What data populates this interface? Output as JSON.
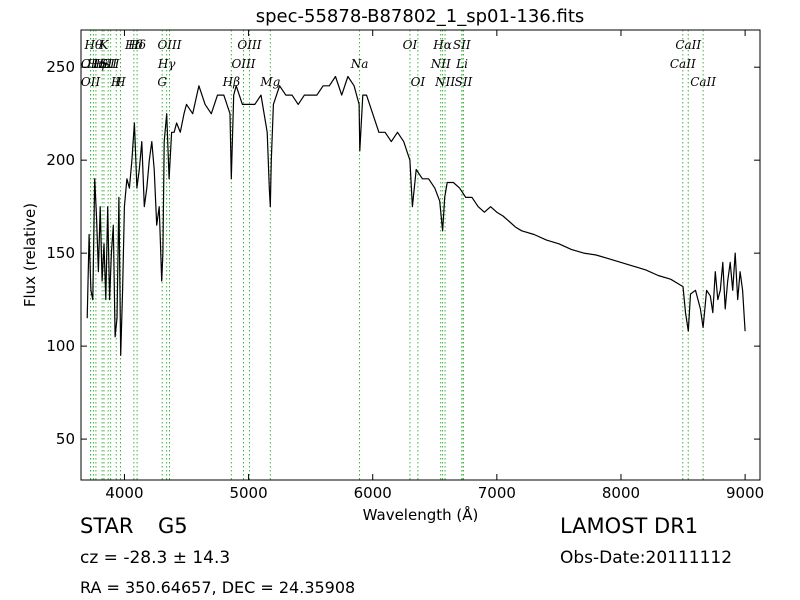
{
  "chart_data": {
    "type": "line",
    "title": "spec-55878-B87802_1_sp01-136.fits",
    "xlabel": "Wavelength (Å)",
    "ylabel": "Flux (relative)",
    "xlim": [
      3650,
      9120
    ],
    "ylim": [
      28,
      270
    ],
    "xticks": [
      4000,
      5000,
      6000,
      7000,
      8000,
      9000
    ],
    "yticks": [
      50,
      100,
      150,
      200,
      250
    ],
    "grid": false,
    "series": [
      {
        "x": [
          3700,
          3715,
          3730,
          3745,
          3760,
          3775,
          3790,
          3805,
          3820,
          3835,
          3850,
          3865,
          3880,
          3895,
          3910,
          3925,
          3940,
          3955,
          3970,
          3985,
          4000,
          4020,
          4040,
          4060,
          4080,
          4100,
          4120,
          4140,
          4160,
          4180,
          4200,
          4220,
          4240,
          4260,
          4280,
          4300,
          4310,
          4320,
          4340,
          4360,
          4380,
          4400,
          4420,
          4450,
          4480,
          4500,
          4550,
          4600,
          4650,
          4700,
          4750,
          4800,
          4850,
          4861,
          4880,
          4900,
          4950,
          5000,
          5050,
          5100,
          5150,
          5167,
          5175,
          5183,
          5200,
          5250,
          5300,
          5350,
          5400,
          5450,
          5500,
          5550,
          5600,
          5650,
          5700,
          5750,
          5800,
          5850,
          5870,
          5890,
          5896,
          5920,
          5950,
          6000,
          6050,
          6100,
          6150,
          6200,
          6250,
          6300,
          6320,
          6350,
          6400,
          6450,
          6500,
          6540,
          6563,
          6580,
          6600,
          6650,
          6700,
          6750,
          6800,
          6850,
          6900,
          6950,
          7000,
          7050,
          7100,
          7150,
          7200,
          7300,
          7400,
          7500,
          7600,
          7700,
          7800,
          7900,
          8000,
          8100,
          8200,
          8300,
          8400,
          8450,
          8500,
          8520,
          8542,
          8560,
          8600,
          8640,
          8662,
          8690,
          8720,
          8740,
          8760,
          8780,
          8800,
          8820,
          8840,
          8860,
          8880,
          8900,
          8920,
          8940,
          8960,
          8980,
          9000
        ],
        "y": [
          115,
          160,
          130,
          125,
          190,
          170,
          140,
          175,
          135,
          155,
          125,
          175,
          125,
          150,
          165,
          105,
          115,
          180,
          95,
          130,
          175,
          190,
          185,
          200,
          220,
          185,
          195,
          210,
          175,
          185,
          200,
          210,
          195,
          165,
          175,
          135,
          150,
          210,
          225,
          190,
          215,
          215,
          220,
          215,
          225,
          230,
          225,
          240,
          230,
          225,
          235,
          235,
          225,
          190,
          235,
          240,
          230,
          230,
          230,
          235,
          215,
          185,
          175,
          200,
          230,
          240,
          235,
          235,
          230,
          235,
          235,
          235,
          240,
          240,
          245,
          235,
          245,
          240,
          235,
          230,
          205,
          235,
          235,
          225,
          215,
          215,
          210,
          215,
          210,
          200,
          175,
          195,
          190,
          190,
          185,
          178,
          162,
          180,
          188,
          188,
          185,
          180,
          180,
          175,
          172,
          175,
          172,
          170,
          167,
          164,
          162,
          160,
          157,
          155,
          152,
          150,
          149,
          147,
          145,
          143,
          141,
          138,
          136,
          134,
          132,
          118,
          108,
          128,
          130,
          120,
          110,
          130,
          127,
          118,
          140,
          125,
          130,
          145,
          120,
          135,
          145,
          130,
          150,
          125,
          140,
          130,
          108
        ],
        "stroke": "#000000"
      }
    ],
    "spectral_lines": [
      {
        "x": 3727,
        "label": "OII",
        "row": 1
      },
      {
        "x": 3727,
        "label": "OII",
        "row": 2
      },
      {
        "x": 3750,
        "label": "Hθ",
        "row": 0
      },
      {
        "x": 3770,
        "label": "Hη",
        "row": 1
      },
      {
        "x": 3820,
        "label": "Hϵ",
        "row": 1
      },
      {
        "x": 3835,
        "label": "K",
        "row": 0
      },
      {
        "x": 3869,
        "label": "SII",
        "row": 1
      },
      {
        "x": 3889,
        "label": "SII",
        "row": 1
      },
      {
        "x": 3934,
        "label": "H",
        "row": 2
      },
      {
        "x": 3968,
        "label": "H",
        "row": 2
      },
      {
        "x": 4076,
        "label": "Hδ",
        "row": 0
      },
      {
        "x": 4102,
        "label": "Hδ",
        "row": 0
      },
      {
        "x": 4304,
        "label": "G",
        "row": 2
      },
      {
        "x": 4340,
        "label": "Hγ",
        "row": 1
      },
      {
        "x": 4363,
        "label": "OIII",
        "row": 0
      },
      {
        "x": 4861,
        "label": "Hβ",
        "row": 2
      },
      {
        "x": 4959,
        "label": "OIII",
        "row": 1
      },
      {
        "x": 5007,
        "label": "OIII",
        "row": 0
      },
      {
        "x": 5175,
        "label": "Mg",
        "row": 2
      },
      {
        "x": 5894,
        "label": "Na",
        "row": 1
      },
      {
        "x": 6300,
        "label": "OI",
        "row": 0
      },
      {
        "x": 6364,
        "label": "OI",
        "row": 2
      },
      {
        "x": 6548,
        "label": "NII",
        "row": 1
      },
      {
        "x": 6563,
        "label": "Hα",
        "row": 0
      },
      {
        "x": 6583,
        "label": "NII",
        "row": 2
      },
      {
        "x": 6717,
        "label": "SII",
        "row": 0
      },
      {
        "x": 6731,
        "label": "SII",
        "row": 2
      },
      {
        "x": 6720,
        "label": "Li",
        "row": 1
      },
      {
        "x": 8498,
        "label": "CaII",
        "row": 1
      },
      {
        "x": 8542,
        "label": "CaII",
        "row": 0
      },
      {
        "x": 8662,
        "label": "CaII",
        "row": 2
      }
    ],
    "line_color": "#3fb33f"
  },
  "info": {
    "object_class": "STAR",
    "object_subclass": "G5",
    "survey": "LAMOST DR1",
    "cz": "cz = -28.3 ± 14.3",
    "obs_date": "Obs-Date:20111112",
    "radec": "RA = 350.64657, DEC = 24.35908"
  }
}
